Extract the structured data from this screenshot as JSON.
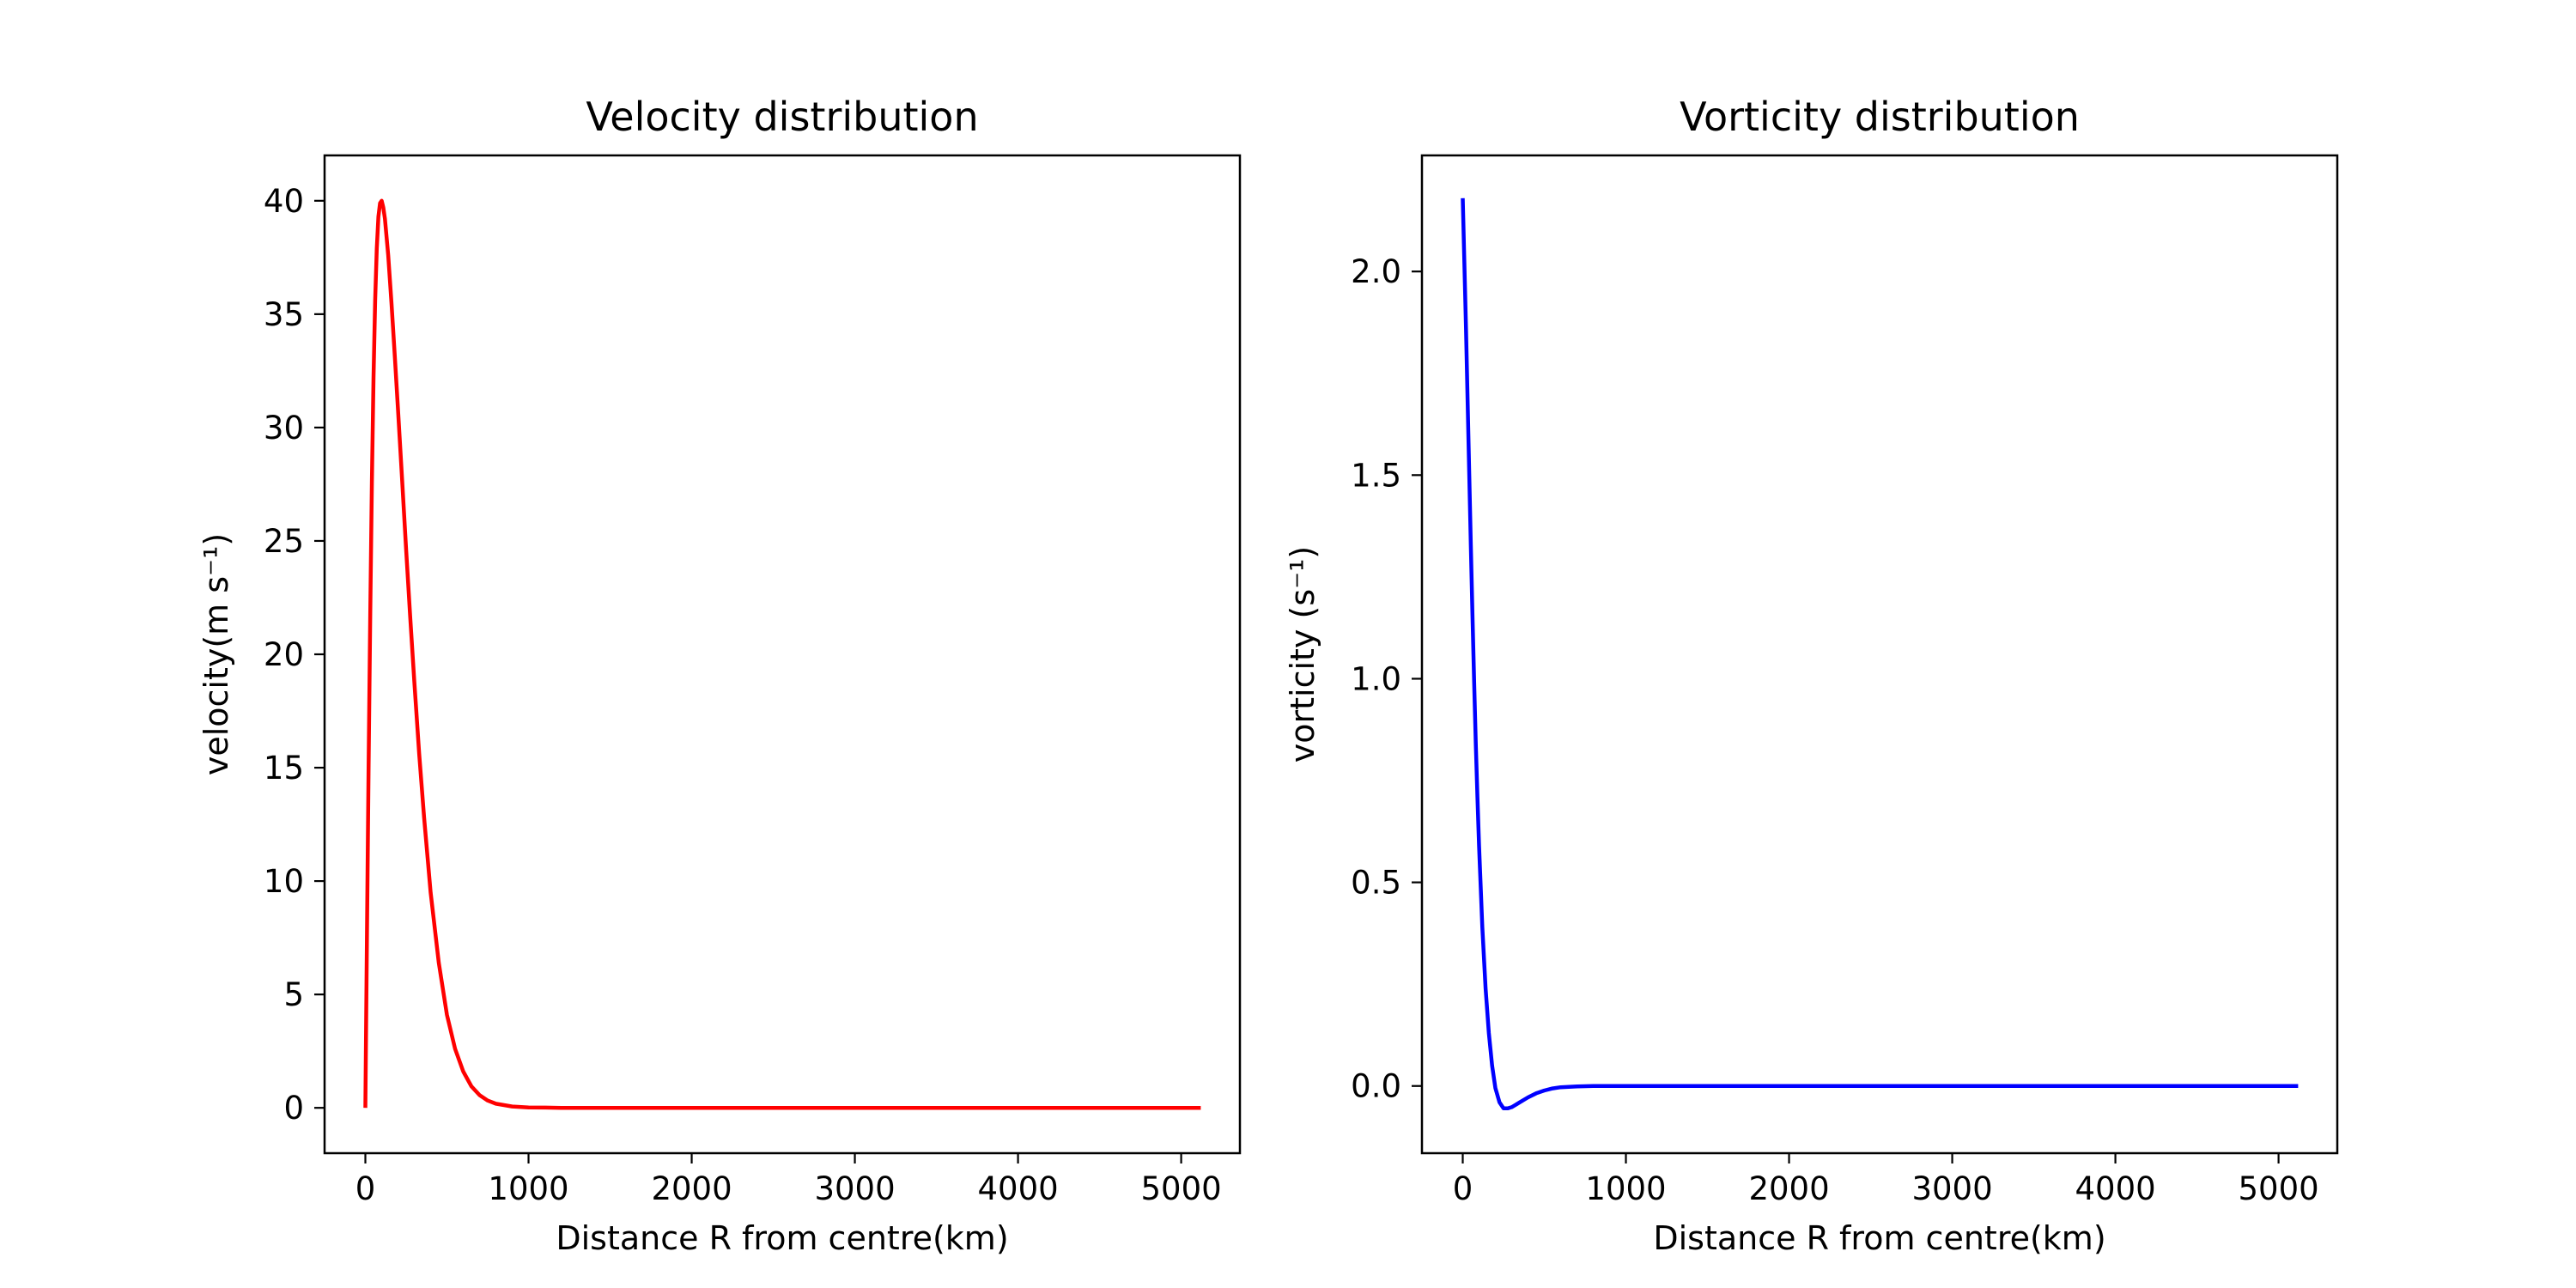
{
  "chart_data": [
    {
      "type": "line",
      "title": "Velocity distribution",
      "xlabel": "Distance R from centre(km)",
      "ylabel": "velocity(m s⁻¹)",
      "xlim": [
        -250,
        5360
      ],
      "ylim": [
        -2,
        42
      ],
      "xticks": [
        0,
        1000,
        2000,
        3000,
        4000,
        5000
      ],
      "yticks": [
        0,
        5,
        10,
        15,
        20,
        25,
        30,
        35,
        40
      ],
      "xtick_labels": [
        "0",
        "1000",
        "2000",
        "3000",
        "4000",
        "5000"
      ],
      "ytick_labels": [
        "0",
        "5",
        "10",
        "15",
        "20",
        "25",
        "30",
        "35",
        "40"
      ],
      "grid": false,
      "series": [
        {
          "color": "#ff0000",
          "x": [
            0,
            10,
            20,
            30,
            40,
            50,
            60,
            70,
            80,
            90,
            100,
            110,
            120,
            140,
            160,
            180,
            200,
            225,
            250,
            275,
            300,
            330,
            360,
            400,
            450,
            500,
            550,
            600,
            650,
            700,
            750,
            800,
            900,
            1000,
            1100,
            1200,
            1500,
            2000,
            3000,
            4000,
            5120
          ],
          "y": [
            0,
            7.8,
            15.2,
            21.8,
            27.6,
            32.2,
            35.6,
            37.9,
            39.3,
            39.9,
            40.0,
            39.7,
            39.2,
            37.6,
            35.5,
            33.2,
            30.8,
            27.7,
            24.6,
            21.6,
            18.8,
            15.6,
            12.8,
            9.5,
            6.4,
            4.1,
            2.6,
            1.6,
            0.95,
            0.56,
            0.32,
            0.18,
            0.06,
            0.02,
            0.01,
            0,
            0,
            0,
            0,
            0,
            0
          ]
        }
      ]
    },
    {
      "type": "line",
      "title": "Vorticity distribution",
      "xlabel": "Distance R from centre(km)",
      "ylabel": "vorticity (s⁻¹)",
      "xlim": [
        -250,
        5360
      ],
      "ylim": [
        -0.165,
        2.285
      ],
      "xticks": [
        0,
        1000,
        2000,
        3000,
        4000,
        5000
      ],
      "yticks": [
        0.0,
        0.5,
        1.0,
        1.5,
        2.0
      ],
      "xtick_labels": [
        "0",
        "1000",
        "2000",
        "3000",
        "4000",
        "5000"
      ],
      "ytick_labels": [
        "0.0",
        "0.5",
        "1.0",
        "1.5",
        "2.0"
      ],
      "grid": false,
      "series": [
        {
          "color": "#0000ff",
          "x": [
            0,
            10,
            20,
            30,
            40,
            50,
            60,
            70,
            80,
            90,
            100,
            120,
            140,
            160,
            180,
            200,
            225,
            250,
            275,
            300,
            325,
            350,
            400,
            450,
            500,
            550,
            600,
            700,
            800,
            900,
            1000,
            1200,
            1500,
            2000,
            3000,
            4000,
            5120
          ],
          "y": [
            2.18,
            2.02,
            1.86,
            1.68,
            1.5,
            1.32,
            1.15,
            0.99,
            0.84,
            0.71,
            0.59,
            0.39,
            0.24,
            0.13,
            0.05,
            -0.005,
            -0.04,
            -0.055,
            -0.055,
            -0.052,
            -0.046,
            -0.04,
            -0.028,
            -0.018,
            -0.011,
            -0.006,
            -0.003,
            -0.001,
            0,
            0,
            0,
            0,
            0,
            0,
            0,
            0,
            0
          ]
        }
      ]
    }
  ]
}
